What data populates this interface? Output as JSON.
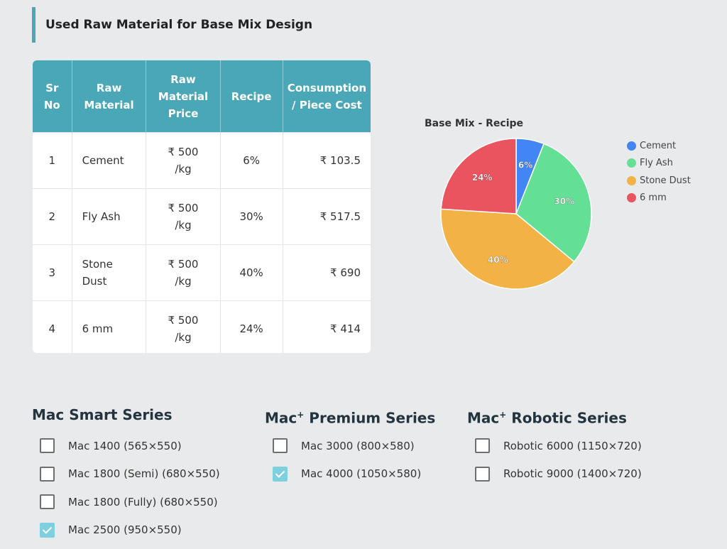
{
  "section_title": "Used Raw Material for Base Mix Design",
  "table": {
    "headers": [
      "Sr\nNo",
      "Raw\nMaterial",
      "Raw\nMaterial\nPrice",
      "Recipe",
      "Consumption\n/ Piece Cost"
    ],
    "rows": [
      {
        "sr": "1",
        "material": "Cement",
        "price": "₹ 500\n/kg",
        "recipe": "6%",
        "cost": "₹ 103.5"
      },
      {
        "sr": "2",
        "material": "Fly Ash",
        "price": "₹ 500\n/kg",
        "recipe": "30%",
        "cost": "₹ 517.5"
      },
      {
        "sr": "3",
        "material": "Stone\nDust",
        "price": "₹ 500\n/kg",
        "recipe": "40%",
        "cost": "₹ 690"
      },
      {
        "sr": "4",
        "material": "6 mm",
        "price": "₹ 500\n/kg",
        "recipe": "24%",
        "cost": "₹ 414"
      }
    ]
  },
  "chart_data": {
    "type": "pie",
    "title": "Base Mix - Recipe",
    "categories": [
      "Cement",
      "Fly Ash",
      "Stone Dust",
      "6 mm"
    ],
    "values": [
      6,
      30,
      40,
      24
    ],
    "labels": [
      "6%",
      "30%",
      "40%",
      "24%"
    ],
    "colors": [
      "#4285f4",
      "#64e096",
      "#f2b245",
      "#e9545f"
    ],
    "legend_position": "right"
  },
  "series": [
    {
      "title": "Mac Smart Series",
      "sup": "",
      "options": [
        {
          "label": "Mac 1400 (565×550)",
          "checked": false
        },
        {
          "label": "Mac 1800 (Semi) (680×550)",
          "checked": false
        },
        {
          "label": "Mac 1800 (Fully) (680×550)",
          "checked": false
        },
        {
          "label": "Mac 2500 (950×550)",
          "checked": true
        }
      ]
    },
    {
      "title": "Premium Series",
      "sup": "+",
      "prefix": "Mac",
      "options": [
        {
          "label": "Mac 3000 (800×580)",
          "checked": false
        },
        {
          "label": "Mac 4000 (1050×580)",
          "checked": true
        }
      ]
    },
    {
      "title": "Robotic Series",
      "sup": "+",
      "prefix": "Mac",
      "options": [
        {
          "label": "Robotic 6000 (1150×720)",
          "checked": false
        },
        {
          "label": "Robotic 9000 (1400×720)",
          "checked": false
        }
      ]
    }
  ]
}
